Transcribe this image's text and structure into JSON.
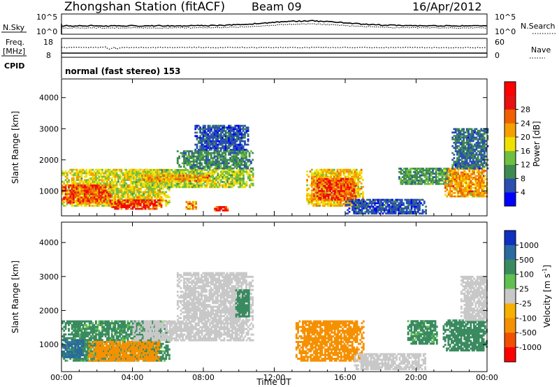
{
  "header": {
    "title": "Zhongshan Station (fitACF)",
    "beam": "Beam 09",
    "date": "16/Apr/2012"
  },
  "sky_panel": {
    "left_label": "N.Sky",
    "left_ticks": [
      "10^5",
      "10^0"
    ],
    "right_ticks": [
      "10^5",
      "10^0"
    ],
    "right_label": "N.Search"
  },
  "freq_panel": {
    "left_label_1": "Freq.",
    "left_label_2": "[MHz]",
    "left_ticks": [
      "18",
      "8"
    ],
    "right_ticks": [
      "60",
      "0"
    ],
    "right_label": "Nave"
  },
  "cpid": {
    "label": "CPID",
    "text": "normal (fast stereo) 153"
  },
  "colors": {
    "power_scale": [
      "#0000ff",
      "#2a4fb0",
      "#3f8a50",
      "#6fbf40",
      "#f0e000",
      "#f5a000",
      "#f06000",
      "#e81010",
      "#ff0000"
    ],
    "velocity_scale": [
      "#ff0000",
      "#f05000",
      "#f59000",
      "#f5b000",
      "#c8c8c8",
      "#60c050",
      "#3a8a60",
      "#2a6aa0",
      "#1030c0"
    ]
  },
  "chart_data": [
    {
      "type": "heatmap",
      "name": "power",
      "ylabel": "Slant Range [km]",
      "y_ticks": [
        "1000",
        "2000",
        "3000",
        "4000"
      ],
      "ylim": [
        200,
        4600
      ],
      "xlim": [
        "00:00",
        "24:00"
      ],
      "colorbar": {
        "label": "Power [dB]",
        "ticks": [
          "4",
          "8",
          "12",
          "16",
          "20",
          "24",
          "28"
        ],
        "range": [
          0,
          32
        ]
      },
      "regions": [
        {
          "t0": 0.0,
          "t1": 6.1,
          "r0": 500,
          "r1": 1700,
          "v": 18
        },
        {
          "t0": 0.0,
          "t1": 2.7,
          "r0": 600,
          "r1": 1200,
          "v": 27
        },
        {
          "t0": 2.7,
          "t1": 5.6,
          "r0": 400,
          "r1": 700,
          "v": 29
        },
        {
          "t0": 4.0,
          "t1": 10.8,
          "r0": 1100,
          "r1": 1700,
          "v": 16
        },
        {
          "t0": 4.5,
          "t1": 8.5,
          "r0": 1300,
          "r1": 1500,
          "v": 22
        },
        {
          "t0": 6.5,
          "t1": 10.8,
          "r0": 1700,
          "r1": 2300,
          "v": 10
        },
        {
          "t0": 7.5,
          "t1": 10.5,
          "r0": 2300,
          "r1": 3100,
          "v": 6
        },
        {
          "t0": 7.0,
          "t1": 7.6,
          "r0": 400,
          "r1": 650,
          "v": 24
        },
        {
          "t0": 8.6,
          "t1": 9.4,
          "r0": 350,
          "r1": 500,
          "v": 30
        },
        {
          "t0": 13.8,
          "t1": 17.0,
          "r0": 500,
          "r1": 1700,
          "v": 20
        },
        {
          "t0": 14.2,
          "t1": 16.6,
          "r0": 700,
          "r1": 1400,
          "v": 27
        },
        {
          "t0": 16.0,
          "t1": 20.5,
          "r0": 250,
          "r1": 700,
          "v": 6
        },
        {
          "t0": 19.0,
          "t1": 22.0,
          "r0": 1200,
          "r1": 1700,
          "v": 11
        },
        {
          "t0": 21.6,
          "t1": 24.0,
          "r0": 800,
          "r1": 1700,
          "v": 22
        },
        {
          "t0": 22.0,
          "t1": 24.0,
          "r0": 1700,
          "r1": 3000,
          "v": 8
        }
      ]
    },
    {
      "type": "heatmap",
      "name": "velocity",
      "ylabel": "Slant Range [km]",
      "xlabel": "Time UT",
      "y_ticks": [
        "1000",
        "2000",
        "3000",
        "4000"
      ],
      "ylim": [
        200,
        4600
      ],
      "xlim": [
        "00:00",
        "24:00"
      ],
      "x_ticks": [
        "00:00",
        "04:00",
        "08:00",
        "12:00",
        "16:00",
        "20:00",
        "00:00"
      ],
      "colorbar": {
        "label": "Velocity [m s",
        "label_sup": "-1",
        "label_end": "]",
        "ticks": [
          "1000",
          "500",
          "100",
          "25",
          "-25",
          "-100",
          "-500",
          "-1000"
        ],
        "range": [
          -1200,
          1200
        ]
      },
      "regions": [
        {
          "t0": 0.0,
          "t1": 6.1,
          "r0": 500,
          "r1": 1700,
          "v": 120
        },
        {
          "t0": 1.5,
          "t1": 5.5,
          "r0": 500,
          "r1": 1100,
          "v": -150
        },
        {
          "t0": 0.0,
          "t1": 1.2,
          "r0": 600,
          "r1": 1100,
          "v": 600
        },
        {
          "t0": 4.0,
          "t1": 10.8,
          "r0": 1100,
          "r1": 1700,
          "v": 0
        },
        {
          "t0": 6.5,
          "t1": 10.8,
          "r0": 1700,
          "r1": 3100,
          "v": 5
        },
        {
          "t0": 9.8,
          "t1": 10.6,
          "r0": 1800,
          "r1": 2600,
          "v": 150
        },
        {
          "t0": 13.2,
          "t1": 17.0,
          "r0": 500,
          "r1": 1700,
          "v": -200
        },
        {
          "t0": 16.5,
          "t1": 20.5,
          "r0": 250,
          "r1": 700,
          "v": 0
        },
        {
          "t0": 19.5,
          "t1": 21.2,
          "r0": 1000,
          "r1": 1700,
          "v": 120
        },
        {
          "t0": 21.5,
          "t1": 24.0,
          "r0": 800,
          "r1": 1700,
          "v": 150
        },
        {
          "t0": 22.5,
          "t1": 24.0,
          "r0": 1700,
          "r1": 3000,
          "v": 5
        }
      ]
    }
  ]
}
